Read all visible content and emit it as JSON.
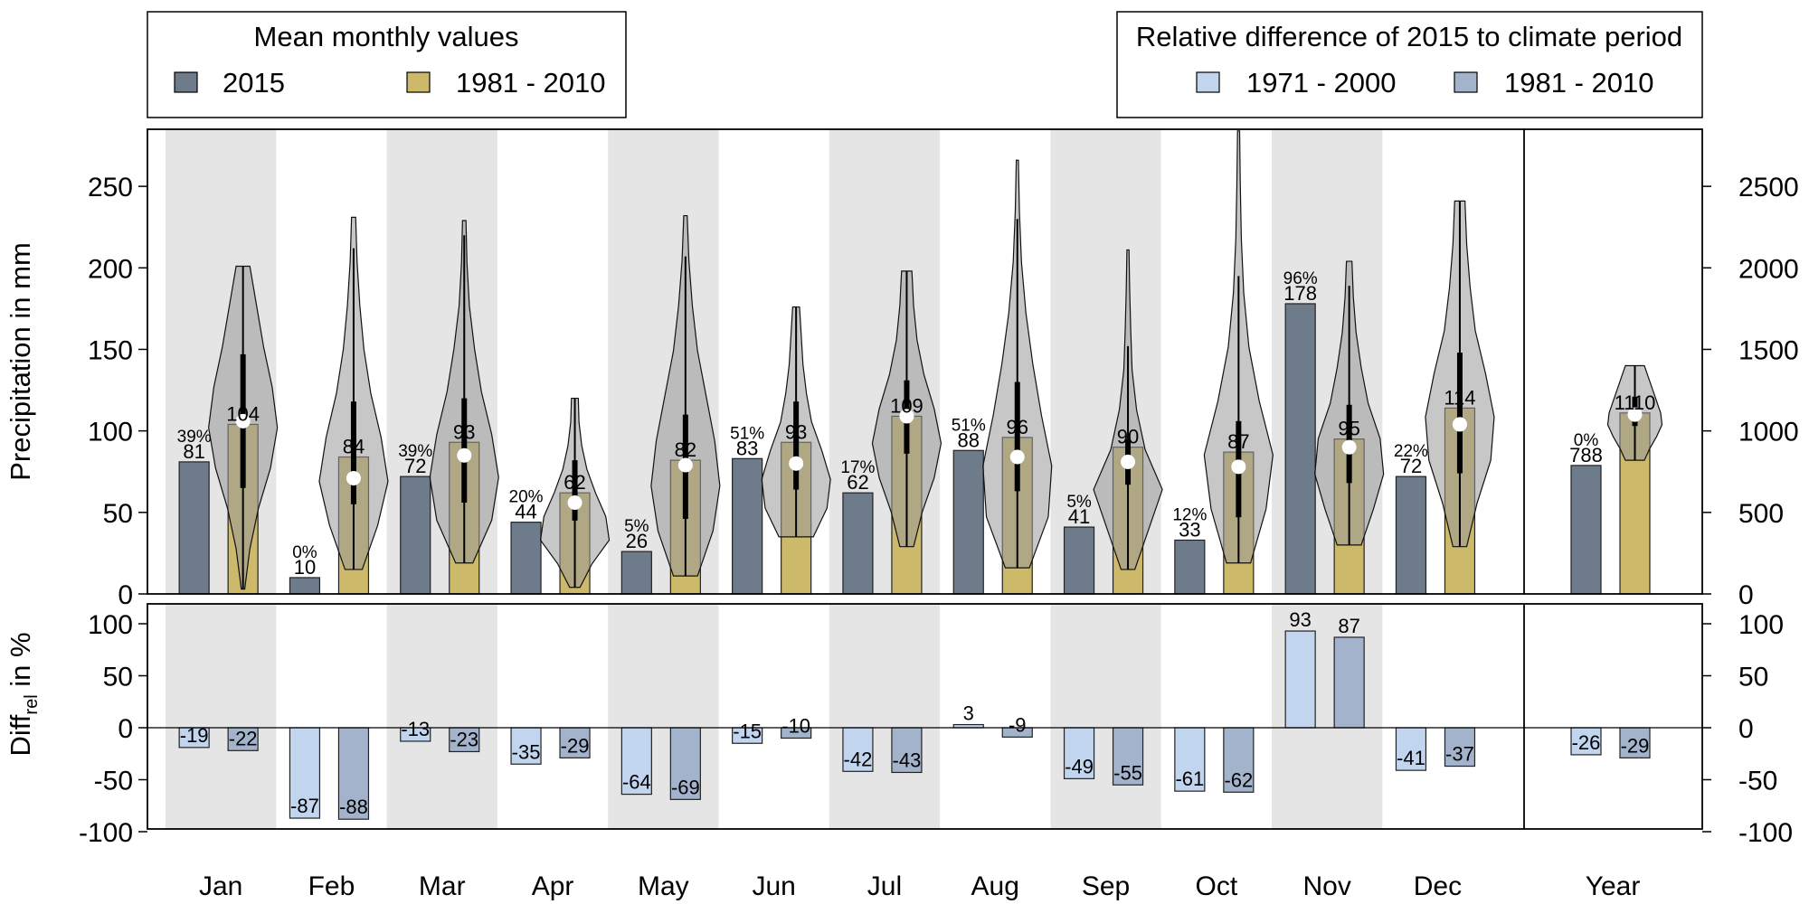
{
  "colors": {
    "bar_2015": "#6e7b8b",
    "bar_clim": "#ccb96a",
    "diff_7100": "#c2d5ef",
    "diff_8110": "#a3b3cc",
    "shade": "#e5e5e5",
    "violin": "#999999"
  },
  "legend_left": {
    "title": "Mean monthly values",
    "items": [
      "2015",
      "1981 - 2010"
    ]
  },
  "legend_right": {
    "title": "Relative difference of 2015 to climate period",
    "items": [
      "1971 - 2000",
      "1981 - 2010"
    ]
  },
  "chart_data": {
    "type": "bar",
    "categories": [
      "Jan",
      "Feb",
      "Mar",
      "Apr",
      "May",
      "Jun",
      "Jul",
      "Aug",
      "Sep",
      "Oct",
      "Nov",
      "Dec",
      "Year"
    ],
    "top_panel": {
      "ylabel": "Precipitation in mm",
      "ylim": [
        0,
        285
      ],
      "yticks_left": [
        "0",
        "50",
        "100",
        "150",
        "200",
        "250"
      ],
      "yticks_right": [
        "0",
        "500",
        "1000",
        "1500",
        "2000",
        "2500"
      ],
      "right_axis_scale": 10,
      "series": [
        {
          "name": "2015",
          "values": [
            81,
            10,
            72,
            44,
            26,
            83,
            62,
            88,
            41,
            33,
            178,
            72,
            788
          ]
        },
        {
          "name": "1981 - 2010",
          "values": [
            104,
            84,
            93,
            62,
            82,
            93,
            109,
            96,
            90,
            87,
            95,
            114,
            1110
          ]
        }
      ],
      "percentiles": [
        "39%",
        "0%",
        "39%",
        "20%",
        "5%",
        "51%",
        "17%",
        "51%",
        "5%",
        "12%",
        "96%",
        "22%",
        "0%"
      ],
      "violins": [
        {
          "min": 3,
          "max": 201,
          "median": 106,
          "q1": 65,
          "q3": 147,
          "wlo": 3,
          "whi": 201,
          "shape": [
            0.05,
            0.2,
            0.45,
            0.8,
            1.0,
            0.85,
            0.6,
            0.4,
            0.2
          ]
        },
        {
          "min": 15,
          "max": 231,
          "median": 71,
          "q1": 55,
          "q3": 118,
          "wlo": 15,
          "whi": 212,
          "shape": [
            0.25,
            0.7,
            1.0,
            0.8,
            0.5,
            0.3,
            0.18,
            0.1,
            0.06
          ]
        },
        {
          "min": 19,
          "max": 229,
          "median": 85,
          "q1": 56,
          "q3": 120,
          "wlo": 19,
          "whi": 220,
          "shape": [
            0.25,
            0.8,
            1.0,
            0.8,
            0.5,
            0.3,
            0.15,
            0.08,
            0.05
          ]
        },
        {
          "min": 4,
          "max": 120,
          "median": 56,
          "q1": 45,
          "q3": 82,
          "wlo": 4,
          "whi": 120,
          "shape": [
            0.15,
            0.5,
            1.0,
            0.9,
            0.6,
            0.35,
            0.2,
            0.12,
            0.1
          ]
        },
        {
          "min": 11,
          "max": 232,
          "median": 79,
          "q1": 46,
          "q3": 110,
          "wlo": 11,
          "whi": 207,
          "shape": [
            0.35,
            0.8,
            1.0,
            0.85,
            0.6,
            0.35,
            0.2,
            0.1,
            0.05
          ]
        },
        {
          "min": 35,
          "max": 176,
          "median": 80,
          "q1": 64,
          "q3": 118,
          "wlo": 35,
          "whi": 176,
          "shape": [
            0.5,
            0.9,
            1.0,
            0.75,
            0.45,
            0.3,
            0.2,
            0.15,
            0.1
          ]
        },
        {
          "min": 29,
          "max": 198,
          "median": 109,
          "q1": 86,
          "q3": 131,
          "wlo": 29,
          "whi": 198,
          "shape": [
            0.2,
            0.45,
            0.8,
            1.0,
            0.8,
            0.5,
            0.3,
            0.2,
            0.15
          ]
        },
        {
          "min": 16,
          "max": 266,
          "median": 84,
          "q1": 63,
          "q3": 130,
          "wlo": 16,
          "whi": 230,
          "shape": [
            0.35,
            0.9,
            1.0,
            0.7,
            0.45,
            0.25,
            0.12,
            0.06,
            0.03
          ]
        },
        {
          "min": 15,
          "max": 211,
          "median": 81,
          "q1": 67,
          "q3": 95,
          "wlo": 15,
          "whi": 152,
          "shape": [
            0.2,
            0.6,
            1.0,
            0.5,
            0.25,
            0.12,
            0.08,
            0.05,
            0.03
          ]
        },
        {
          "min": 19,
          "max": 284,
          "median": 78,
          "q1": 47,
          "q3": 106,
          "wlo": 19,
          "whi": 195,
          "shape": [
            0.35,
            0.8,
            1.0,
            0.6,
            0.3,
            0.15,
            0.08,
            0.05,
            0.03
          ]
        },
        {
          "min": 30,
          "max": 204,
          "median": 90,
          "q1": 68,
          "q3": 116,
          "wlo": 30,
          "whi": 189,
          "shape": [
            0.35,
            0.7,
            1.0,
            0.9,
            0.55,
            0.35,
            0.2,
            0.12,
            0.08
          ]
        },
        {
          "min": 29,
          "max": 241,
          "median": 104,
          "q1": 74,
          "q3": 148,
          "wlo": 29,
          "whi": 241,
          "shape": [
            0.2,
            0.5,
            0.9,
            1.0,
            0.75,
            0.45,
            0.3,
            0.2,
            0.15
          ]
        },
        {
          "min": 82,
          "max": 140,
          "median": 110,
          "q1": 103,
          "q3": 121,
          "wlo": 82,
          "whi": 140,
          "shape": [
            0.35,
            0.55,
            0.8,
            1.0,
            0.95,
            0.8,
            0.65,
            0.5,
            0.35
          ]
        }
      ]
    },
    "bottom_panel": {
      "ylabel_main": "Diff",
      "ylabel_sub": "rel",
      "ylabel_tail": " in %",
      "ylim": [
        -100,
        110
      ],
      "yticks": [
        "100",
        "50",
        "0",
        "-50",
        "-100"
      ],
      "series": [
        {
          "name": "1971 - 2000",
          "values": [
            -19,
            -87,
            -13,
            -35,
            -64,
            -15,
            -42,
            3,
            -49,
            -61,
            93,
            -41,
            -26
          ]
        },
        {
          "name": "1981 - 2010",
          "values": [
            -22,
            -88,
            -23,
            -29,
            -69,
            -10,
            -43,
            -9,
            -55,
            -62,
            87,
            -37,
            -29
          ]
        }
      ]
    }
  }
}
